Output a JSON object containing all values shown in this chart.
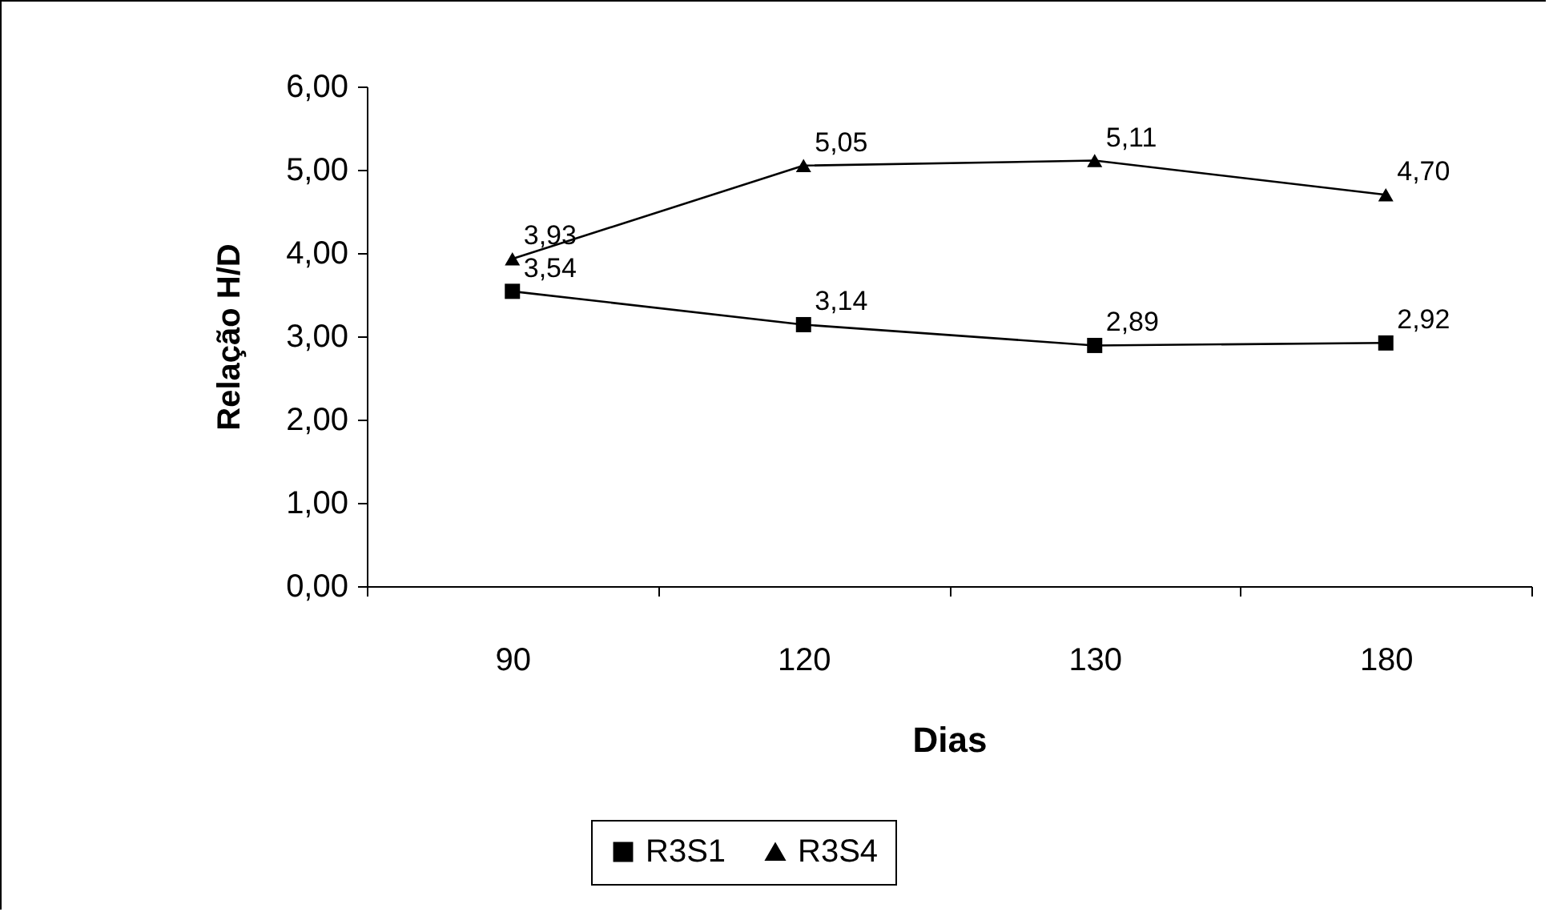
{
  "chart_data": {
    "type": "line",
    "xlabel": "Dias",
    "ylabel": "Relação H/D",
    "categories": [
      "90",
      "120",
      "130",
      "180"
    ],
    "ylim": [
      0,
      6
    ],
    "yticks": [
      {
        "value": 0,
        "label": "0,00"
      },
      {
        "value": 1,
        "label": "1,00"
      },
      {
        "value": 2,
        "label": "2,00"
      },
      {
        "value": 3,
        "label": "3,00"
      },
      {
        "value": 4,
        "label": "4,00"
      },
      {
        "value": 5,
        "label": "5,00"
      },
      {
        "value": 6,
        "label": "6,00"
      }
    ],
    "legend": "bottom",
    "series": [
      {
        "name": "R3S1",
        "color": "#000000",
        "marker": "square",
        "values": [
          3.54,
          3.14,
          2.89,
          2.92
        ],
        "value_labels": [
          "3,54",
          "3,14",
          "2,89",
          "2,92"
        ]
      },
      {
        "name": "R3S4",
        "color": "#000000",
        "marker": "triangle",
        "values": [
          3.93,
          5.05,
          5.11,
          4.7
        ],
        "value_labels": [
          "3,93",
          "5,05",
          "5,11",
          "4,70"
        ]
      }
    ]
  }
}
